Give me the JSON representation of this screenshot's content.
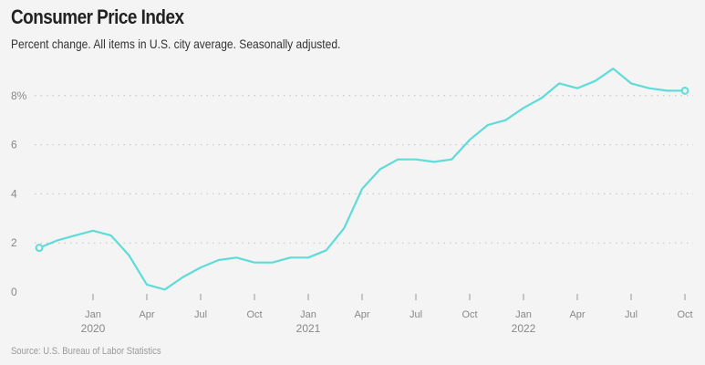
{
  "title": "Consumer Price Index",
  "subtitle": "Percent change. All items in U.S. city average. Seasonally adjusted.",
  "source": "Source: U.S. Bureau of Labor Statistics",
  "colors": {
    "line": "#5fdbd8",
    "grid": "#bfbfbf",
    "background": "#f4f4f4"
  },
  "chart_data": {
    "type": "line",
    "title": "Consumer Price Index",
    "ylim": [
      0,
      9.5
    ],
    "grid": true,
    "ytick_labels": [
      "0",
      "2",
      "4",
      "6",
      "8%"
    ],
    "ytick_values": [
      0,
      2,
      4,
      6,
      8
    ],
    "xtick_labels": [
      "Jan",
      "Apr",
      "Jul",
      "Oct",
      "Jan",
      "Apr",
      "Jul",
      "Oct",
      "Jan",
      "Apr",
      "Jul",
      "Oct"
    ],
    "xtick_dates": [
      "2020-01",
      "2020-04",
      "2020-07",
      "2020-10",
      "2021-01",
      "2021-04",
      "2021-07",
      "2021-10",
      "2022-01",
      "2022-04",
      "2022-07",
      "2022-10"
    ],
    "year_labels": [
      "2020",
      "2021",
      "2022"
    ],
    "year_dates": [
      "2020-01",
      "2021-01",
      "2022-01"
    ],
    "series": [
      {
        "x": [
          "2019-10",
          "2019-11",
          "2019-12",
          "2020-01",
          "2020-02",
          "2020-03",
          "2020-04",
          "2020-05",
          "2020-06",
          "2020-07",
          "2020-08",
          "2020-09",
          "2020-10",
          "2020-11",
          "2020-12",
          "2021-01",
          "2021-02",
          "2021-03",
          "2021-04",
          "2021-05",
          "2021-06",
          "2021-07",
          "2021-08",
          "2021-09",
          "2021-10",
          "2021-11",
          "2021-12",
          "2022-01",
          "2022-02",
          "2022-03",
          "2022-04",
          "2022-05",
          "2022-06",
          "2022-07",
          "2022-08",
          "2022-09",
          "2022-10"
        ],
        "values": [
          1.8,
          2.1,
          2.3,
          2.5,
          2.3,
          1.5,
          0.3,
          0.1,
          0.6,
          1.0,
          1.3,
          1.4,
          1.2,
          1.2,
          1.4,
          1.4,
          1.7,
          2.6,
          4.2,
          5.0,
          5.4,
          5.4,
          5.3,
          5.4,
          6.2,
          6.8,
          7.0,
          7.5,
          7.9,
          8.5,
          8.3,
          8.6,
          9.1,
          8.5,
          8.3,
          8.2,
          8.2
        ]
      }
    ]
  }
}
